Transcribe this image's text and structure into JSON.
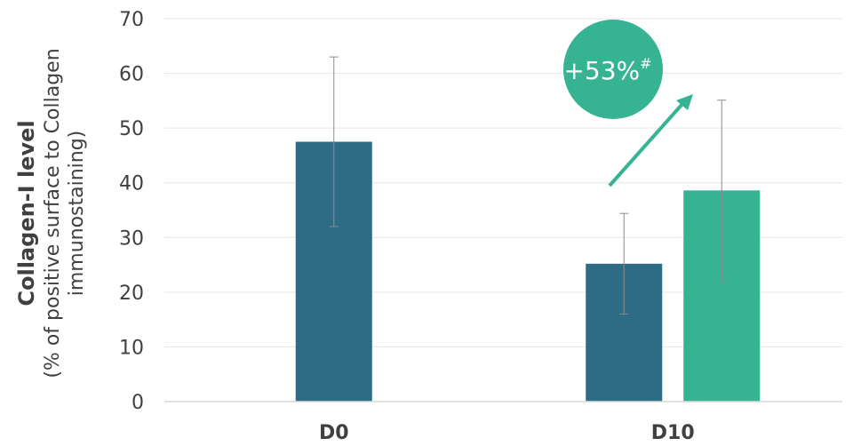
{
  "chart_data": {
    "type": "bar",
    "categories": [
      "D0",
      "D10"
    ],
    "series": [
      {
        "color": "#2e6b84",
        "values": [
          47.5,
          25.2
        ],
        "error": [
          15.5,
          9.2
        ]
      },
      {
        "color": "#36b393",
        "values": [
          null,
          38.6
        ],
        "error": [
          null,
          16.5
        ]
      }
    ],
    "ylabel": "Collagen-I level",
    "ylabel_sub": [
      "(% of positive surface to Collagen",
      "immunostaining)"
    ],
    "ylim": [
      0,
      70
    ],
    "yticks": [
      0,
      10,
      20,
      30,
      40,
      50,
      60,
      70
    ],
    "grid": true,
    "annotation": {
      "text": "+53%",
      "superscript": "#",
      "color": "#36b393"
    }
  }
}
